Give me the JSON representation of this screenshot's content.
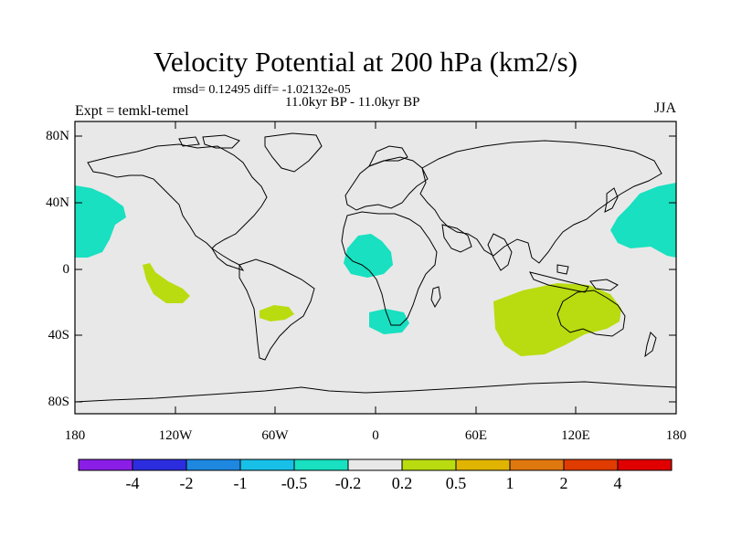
{
  "title": "Velocity Potential at 200 hPa (km2/s)",
  "stats_line": "rmsd= 0.12495 diff= -1.02132e-05",
  "period_line": "11.0kyr BP - 11.0kyr BP",
  "expt_line": "Expt = temkl-temel",
  "season": "JJA",
  "y_ticks": [
    "80N",
    "40N",
    "0",
    "40S",
    "80S"
  ],
  "x_ticks": [
    "180",
    "120W",
    "60W",
    "0",
    "60E",
    "120E",
    "180"
  ],
  "colorbar": {
    "colors": [
      "#8a1ee6",
      "#2d2de0",
      "#1e88e0",
      "#18c0e8",
      "#18e0c0",
      "#e8e8e8",
      "#b8dc10",
      "#e0b400",
      "#e07810",
      "#e03c00",
      "#e00000"
    ],
    "labels": [
      "-4",
      "-2",
      "-1",
      "-0.5",
      "-0.2",
      "0.2",
      "0.5",
      "1",
      "2",
      "4"
    ]
  },
  "colors": {
    "ocean_background": "#e8e8e8",
    "negative_anomaly": "#18e0c0",
    "positive_anomaly": "#b8dc10",
    "positive_small": "#e0b400"
  }
}
